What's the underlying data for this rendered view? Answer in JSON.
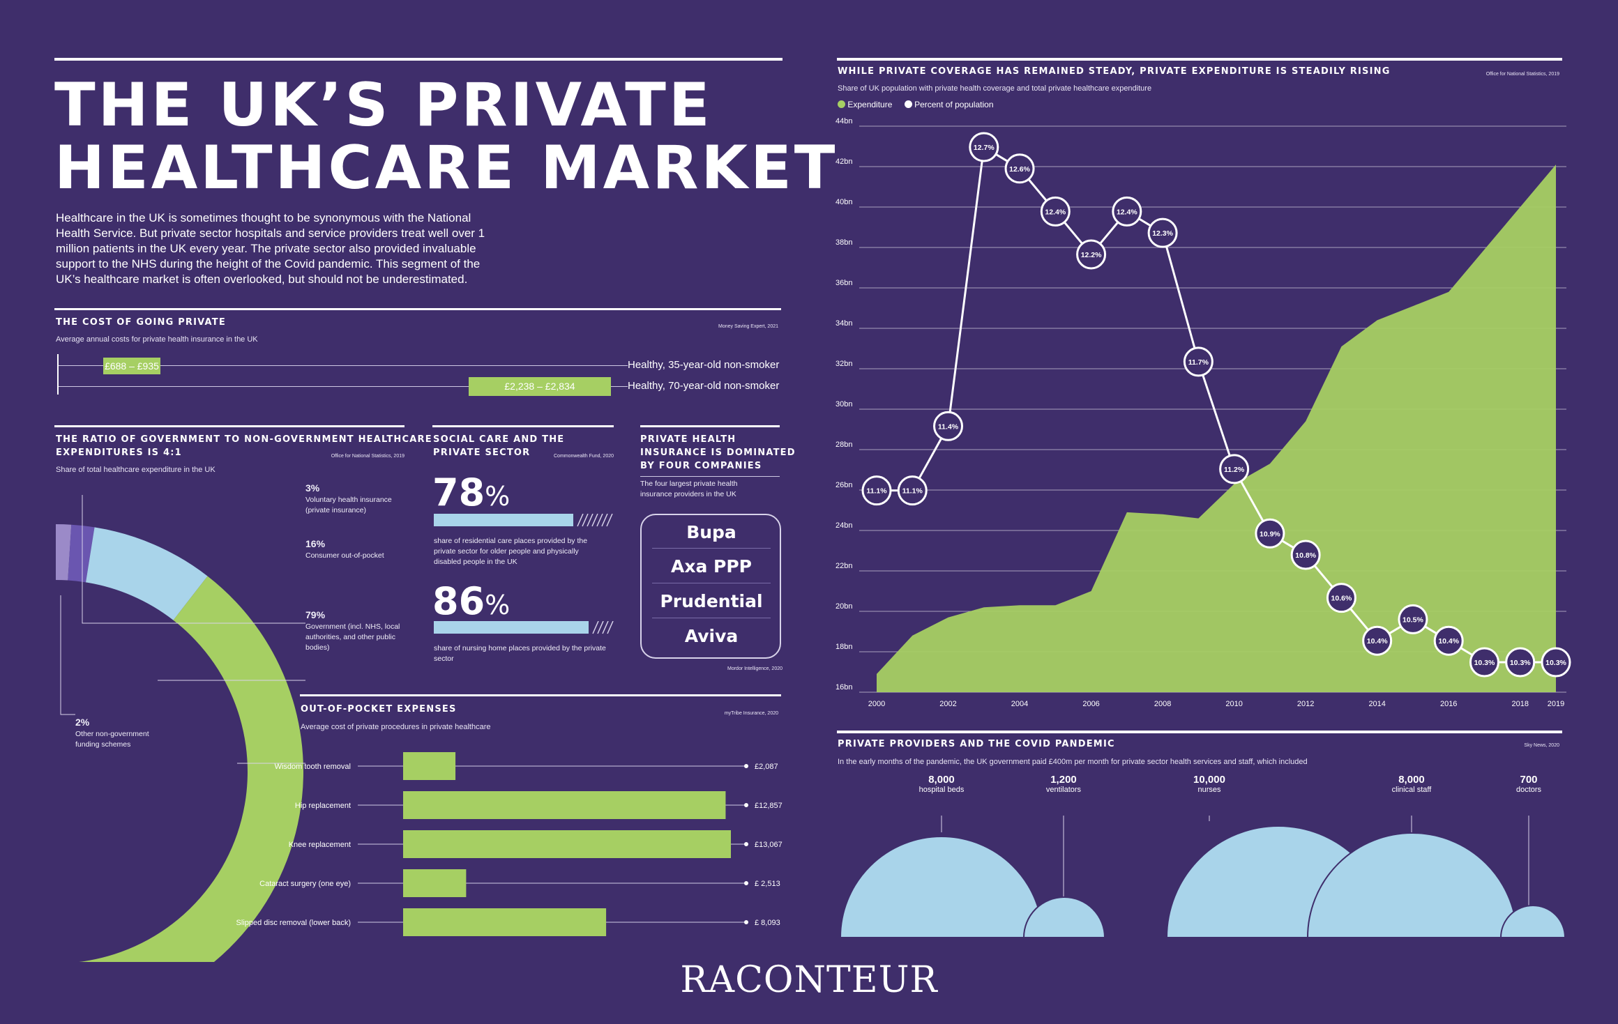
{
  "title": {
    "line1": "THE UK’S PRIVATE",
    "line2": "HEALTHCARE MARKET"
  },
  "intro": "Healthcare in the UK is sometimes thought to be synonymous with the National Health Service. But private sector hospitals and service providers treat well over 1 million patients in the UK every year. The private sector also provided invaluable support to the NHS during the height of the Covid pandemic. This segment of the UK’s healthcare market is often overlooked, but should not be underestimated.",
  "logo": "RACONTEUR",
  "colors": {
    "background": "#3f2e6b",
    "green": "#a6cf63",
    "light_blue": "#a9d4ea",
    "lavender": "#9b8ac8",
    "purple": "#6a56b0"
  },
  "cost": {
    "title": "THE COST OF GOING PRIVATE",
    "source": "Money Saving Expert, 2021",
    "subtitle": "Average annual costs for private health insurance in the UK",
    "rows": [
      {
        "range": "£688 – £935",
        "label": "Healthy, 35-year-old non-smoker",
        "low": 688,
        "high": 935
      },
      {
        "range": "£2,238 – £2,834",
        "label": "Healthy, 70-year-old non-smoker",
        "low": 2238,
        "high": 2834
      }
    ]
  },
  "ratio": {
    "title_line1": "THE RATIO OF GOVERNMENT TO NON-GOVERNMENT HEALTHCARE",
    "title_line2": "EXPENDITURES IS 4:1",
    "source": "Office for National Statistics, 2019",
    "subtitle": "Share of total healthcare expenditure in the UK",
    "items": [
      {
        "pct": "3%",
        "label": "Voluntary health insurance (private insurance)"
      },
      {
        "pct": "16%",
        "label": "Consumer out-of-pocket"
      },
      {
        "pct": "79%",
        "label": "Government (incl. NHS, local authorities, and other public bodies)"
      },
      {
        "pct": "2%",
        "label": "Other non-government funding schemes"
      }
    ]
  },
  "social": {
    "title_line1": "SOCIAL CARE AND THE",
    "title_line2": "PRIVATE SECTOR",
    "source": "Commonwealth Fund, 2020",
    "stats": [
      {
        "num": "78",
        "sign": "%",
        "desc": "share of residential care places provided by the private sector for older people and physically disabled people in the UK"
      },
      {
        "num": "86",
        "sign": "%",
        "desc": "share of nursing home places provided by the private sector"
      }
    ]
  },
  "insurers": {
    "title_line1": "PRIVATE HEALTH",
    "title_line2": "INSURANCE IS DOMINATED",
    "title_line3": "BY FOUR COMPANIES",
    "subtitle": "The four largest private health insurance providers in the UK",
    "source": "Mordor Intelligence, 2020",
    "names": [
      "Bupa",
      "Axa PPP",
      "Prudential",
      "Aviva"
    ]
  },
  "oop": {
    "title": "OUT-OF-POCKET EXPENSES",
    "source": "myTribe Insurance, 2020",
    "subtitle": "Average cost of private procedures in private healthcare",
    "items": [
      {
        "label": "Wisdom tooth removal",
        "display": "£2,087",
        "value": 2087
      },
      {
        "label": "Hip replacement",
        "display": "£12,857",
        "value": 12857
      },
      {
        "label": "Knee replacement",
        "display": "£13,067",
        "value": 13067
      },
      {
        "label": "Cataract surgery (one eye)",
        "display": "£ 2,513",
        "value": 2513
      },
      {
        "label": "Slipped disc removal (lower back)",
        "display": "£ 8,093",
        "value": 8093
      }
    ]
  },
  "trend": {
    "title": "WHILE PRIVATE COVERAGE HAS REMAINED STEADY, PRIVATE EXPENDITURE IS STEADILY RISING",
    "source": "Office for National Statistics, 2019",
    "subtitle": "Share of UK population with private health coverage and total private healthcare expenditure",
    "legend_expenditure": "Expenditure",
    "legend_population": "Percent of population"
  },
  "covid": {
    "title": "PRIVATE PROVIDERS AND THE COVID PANDEMIC",
    "source": "Sky News, 2020",
    "subtitle": "In the early months of the pandemic, the UK government paid £400m per month for private sector health services and staff, which included",
    "items": [
      {
        "num": "8,000",
        "label": "hospital beds"
      },
      {
        "num": "1,200",
        "label": "ventilators"
      },
      {
        "num": "10,000",
        "label": "nurses"
      },
      {
        "num": "8,000",
        "label": "clinical staff"
      },
      {
        "num": "700",
        "label": "doctors"
      }
    ]
  },
  "chart_data": [
    {
      "type": "area",
      "title": "WHILE PRIVATE COVERAGE HAS REMAINED STEADY, PRIVATE EXPENDITURE IS STEADILY RISING",
      "subtitle": "Share of UK population with private health coverage and total private healthcare expenditure",
      "legend_placement": "top-left",
      "grid": true,
      "x": [
        2000,
        2001,
        2002,
        2003,
        2004,
        2005,
        2006,
        2007,
        2008,
        2009,
        2010,
        2011,
        2012,
        2013,
        2014,
        2015,
        2016,
        2017,
        2018,
        2019
      ],
      "x_tick_labels": [
        "2000",
        "2002",
        "2004",
        "2006",
        "2008",
        "2010",
        "2012",
        "2014",
        "2016",
        "2018",
        "2019"
      ],
      "y_tick_labels": [
        "44bn",
        "42bn",
        "40bn",
        "38bn",
        "36bn",
        "34bn",
        "32bn",
        "30bn",
        "28bn",
        "26bn",
        "24bn",
        "22bn",
        "20bn",
        "18bn",
        "16bn"
      ],
      "ylim": [
        16,
        44
      ],
      "series": [
        {
          "name": "Expenditure",
          "values": [
            16.9,
            18.8,
            19.7,
            20.2,
            20.3,
            20.3,
            21.0,
            24.9,
            24.8,
            24.6,
            26.3,
            27.3,
            29.4,
            33.1,
            34.4,
            35.1,
            35.8,
            37.9,
            40.0,
            42.1
          ]
        },
        {
          "name": "Percent of population",
          "values": [
            11.1,
            11.1,
            11.4,
            12.7,
            12.6,
            12.4,
            12.2,
            12.4,
            12.3,
            11.7,
            11.2,
            10.9,
            10.8,
            10.6,
            10.4,
            10.5,
            10.4,
            10.3,
            10.3,
            10.3
          ],
          "labels": [
            "11.1%",
            "11.1%",
            "11.4%",
            "12.7%",
            "12.6%",
            "12.4%",
            "12.2%",
            "12.4%",
            "12.3%",
            "11.7%",
            "11.2%",
            "10.9%",
            "10.8%",
            "10.6%",
            "10.4%",
            "10.5%",
            "10.4%",
            "10.3%",
            "10.3%",
            "10.3%"
          ]
        }
      ]
    },
    {
      "type": "pie",
      "title": "THE RATIO OF GOVERNMENT TO NON-GOVERNMENT HEALTHCARE EXPENDITURES IS 4:1",
      "categories": [
        "Voluntary health insurance (private insurance)",
        "Consumer out-of-pocket",
        "Government (incl. NHS, local authorities, and other public bodies)",
        "Other non-government funding schemes"
      ],
      "values": [
        3,
        16,
        79,
        2
      ]
    },
    {
      "type": "bar",
      "title": "OUT-OF-POCKET EXPENSES",
      "categories": [
        "Wisdom tooth removal",
        "Hip replacement",
        "Knee replacement",
        "Cataract surgery (one eye)",
        "Slipped disc removal (lower back)"
      ],
      "values": [
        2087,
        12857,
        13067,
        2513,
        8093
      ]
    }
  ]
}
